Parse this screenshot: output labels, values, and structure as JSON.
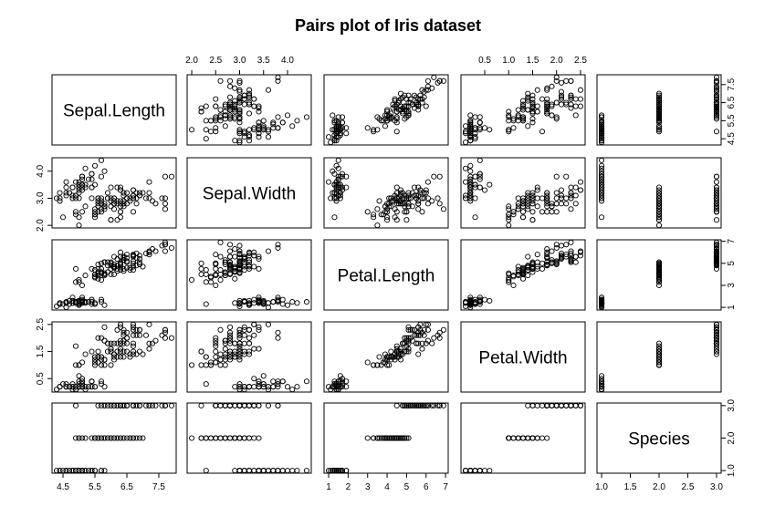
{
  "chart_data": {
    "type": "scatter",
    "title": "Pairs plot of Iris dataset",
    "variables": [
      "Sepal.Length",
      "Sepal.Width",
      "Petal.Length",
      "Petal.Width",
      "Species"
    ],
    "ranges": [
      [
        4.3,
        7.9
      ],
      [
        2.0,
        4.4
      ],
      [
        1.0,
        6.9
      ],
      [
        0.1,
        2.5
      ],
      [
        1,
        3
      ]
    ],
    "ticks": [
      [
        "4.5",
        "5.5",
        "6.5",
        "7.5"
      ],
      [
        "2.0",
        "2.5",
        "3.0",
        "3.5",
        "4.0"
      ],
      [
        "1",
        "2",
        "3",
        "4",
        "5",
        "6",
        "7"
      ],
      [
        "0.5",
        "1.0",
        "1.5",
        "2.0",
        "2.5"
      ],
      [
        "1.0",
        "1.5",
        "2.0",
        "2.5",
        "3.0"
      ]
    ],
    "axes": {
      "bottom": [
        {
          "col": 0,
          "labels": [
            "4.5",
            "5.5",
            "6.5",
            "7.5"
          ]
        },
        {
          "col": 2,
          "labels": [
            "1",
            "2",
            "3",
            "4",
            "5",
            "6",
            "7"
          ]
        },
        {
          "col": 4,
          "labels": [
            "1.0",
            "1.5",
            "2.0",
            "2.5",
            "3.0"
          ]
        }
      ],
      "top": [
        {
          "col": 1,
          "labels": [
            "2.0",
            "2.5",
            "3.0",
            "3.5",
            "4.0"
          ]
        },
        {
          "col": 3,
          "labels": [
            "0.5",
            "1.0",
            "1.5",
            "2.0",
            "2.5"
          ]
        }
      ],
      "left": [
        {
          "row": 1,
          "labels": [
            "2.0",
            "3.0",
            "4.0"
          ]
        },
        {
          "row": 3,
          "labels": [
            "0.5",
            "1.5",
            "2.5"
          ]
        }
      ],
      "right": [
        {
          "row": 0,
          "labels": [
            "4.5",
            "5.5",
            "6.5",
            "7.5"
          ]
        },
        {
          "row": 2,
          "labels": [
            "1",
            "3",
            "5",
            "7"
          ]
        },
        {
          "row": 4,
          "labels": [
            "1.0",
            "2.0",
            "3.0"
          ]
        }
      ]
    },
    "grid": false,
    "species_codes": [
      1,
      2,
      3
    ],
    "observations": [
      [
        5.1,
        3.5,
        1.4,
        0.2,
        1
      ],
      [
        4.9,
        3.0,
        1.4,
        0.2,
        1
      ],
      [
        4.7,
        3.2,
        1.3,
        0.2,
        1
      ],
      [
        4.6,
        3.1,
        1.5,
        0.2,
        1
      ],
      [
        5.0,
        3.6,
        1.4,
        0.2,
        1
      ],
      [
        5.4,
        3.9,
        1.7,
        0.4,
        1
      ],
      [
        4.6,
        3.4,
        1.4,
        0.3,
        1
      ],
      [
        5.0,
        3.4,
        1.5,
        0.2,
        1
      ],
      [
        4.4,
        2.9,
        1.4,
        0.2,
        1
      ],
      [
        4.9,
        3.1,
        1.5,
        0.1,
        1
      ],
      [
        5.4,
        3.7,
        1.5,
        0.2,
        1
      ],
      [
        4.8,
        3.4,
        1.6,
        0.2,
        1
      ],
      [
        4.8,
        3.0,
        1.4,
        0.1,
        1
      ],
      [
        4.3,
        3.0,
        1.1,
        0.1,
        1
      ],
      [
        5.8,
        4.0,
        1.2,
        0.2,
        1
      ],
      [
        5.7,
        4.4,
        1.5,
        0.4,
        1
      ],
      [
        5.4,
        3.9,
        1.3,
        0.4,
        1
      ],
      [
        5.1,
        3.5,
        1.4,
        0.3,
        1
      ],
      [
        5.7,
        3.8,
        1.7,
        0.3,
        1
      ],
      [
        5.1,
        3.8,
        1.5,
        0.3,
        1
      ],
      [
        5.4,
        3.4,
        1.7,
        0.2,
        1
      ],
      [
        5.1,
        3.7,
        1.5,
        0.4,
        1
      ],
      [
        4.6,
        3.6,
        1.0,
        0.2,
        1
      ],
      [
        5.1,
        3.3,
        1.7,
        0.5,
        1
      ],
      [
        4.8,
        3.4,
        1.9,
        0.2,
        1
      ],
      [
        5.0,
        3.0,
        1.6,
        0.2,
        1
      ],
      [
        5.0,
        3.4,
        1.6,
        0.4,
        1
      ],
      [
        5.2,
        3.5,
        1.5,
        0.2,
        1
      ],
      [
        5.2,
        3.4,
        1.4,
        0.2,
        1
      ],
      [
        4.7,
        3.2,
        1.6,
        0.2,
        1
      ],
      [
        4.8,
        3.1,
        1.6,
        0.2,
        1
      ],
      [
        5.4,
        3.4,
        1.5,
        0.4,
        1
      ],
      [
        5.2,
        4.1,
        1.5,
        0.1,
        1
      ],
      [
        5.5,
        4.2,
        1.4,
        0.2,
        1
      ],
      [
        4.9,
        3.1,
        1.5,
        0.2,
        1
      ],
      [
        5.0,
        3.2,
        1.2,
        0.2,
        1
      ],
      [
        5.5,
        3.5,
        1.3,
        0.2,
        1
      ],
      [
        4.9,
        3.6,
        1.4,
        0.1,
        1
      ],
      [
        4.4,
        3.0,
        1.3,
        0.2,
        1
      ],
      [
        5.1,
        3.4,
        1.5,
        0.2,
        1
      ],
      [
        5.0,
        3.5,
        1.3,
        0.3,
        1
      ],
      [
        4.5,
        2.3,
        1.3,
        0.3,
        1
      ],
      [
        4.4,
        3.2,
        1.3,
        0.2,
        1
      ],
      [
        5.0,
        3.5,
        1.6,
        0.6,
        1
      ],
      [
        5.1,
        3.8,
        1.9,
        0.4,
        1
      ],
      [
        4.8,
        3.0,
        1.4,
        0.3,
        1
      ],
      [
        5.1,
        3.8,
        1.6,
        0.2,
        1
      ],
      [
        4.6,
        3.2,
        1.4,
        0.2,
        1
      ],
      [
        5.3,
        3.7,
        1.5,
        0.2,
        1
      ],
      [
        5.0,
        3.3,
        1.4,
        0.2,
        1
      ],
      [
        7.0,
        3.2,
        4.7,
        1.4,
        2
      ],
      [
        6.4,
        3.2,
        4.5,
        1.5,
        2
      ],
      [
        6.9,
        3.1,
        4.9,
        1.5,
        2
      ],
      [
        5.5,
        2.3,
        4.0,
        1.3,
        2
      ],
      [
        6.5,
        2.8,
        4.6,
        1.5,
        2
      ],
      [
        5.7,
        2.8,
        4.5,
        1.3,
        2
      ],
      [
        6.3,
        3.3,
        4.7,
        1.6,
        2
      ],
      [
        4.9,
        2.4,
        3.3,
        1.0,
        2
      ],
      [
        6.6,
        2.9,
        4.6,
        1.3,
        2
      ],
      [
        5.2,
        2.7,
        3.9,
        1.4,
        2
      ],
      [
        5.0,
        2.0,
        3.5,
        1.0,
        2
      ],
      [
        5.9,
        3.0,
        4.2,
        1.5,
        2
      ],
      [
        6.0,
        2.2,
        4.0,
        1.0,
        2
      ],
      [
        6.1,
        2.9,
        4.7,
        1.4,
        2
      ],
      [
        5.6,
        2.9,
        3.6,
        1.3,
        2
      ],
      [
        6.7,
        3.1,
        4.4,
        1.4,
        2
      ],
      [
        5.6,
        3.0,
        4.5,
        1.5,
        2
      ],
      [
        5.8,
        2.7,
        4.1,
        1.0,
        2
      ],
      [
        6.2,
        2.2,
        4.5,
        1.5,
        2
      ],
      [
        5.6,
        2.5,
        3.9,
        1.1,
        2
      ],
      [
        5.9,
        3.2,
        4.8,
        1.8,
        2
      ],
      [
        6.1,
        2.8,
        4.0,
        1.3,
        2
      ],
      [
        6.3,
        2.5,
        4.9,
        1.5,
        2
      ],
      [
        6.1,
        2.8,
        4.7,
        1.2,
        2
      ],
      [
        6.4,
        2.9,
        4.3,
        1.3,
        2
      ],
      [
        6.6,
        3.0,
        4.4,
        1.4,
        2
      ],
      [
        6.8,
        2.8,
        4.8,
        1.4,
        2
      ],
      [
        6.7,
        3.0,
        5.0,
        1.7,
        2
      ],
      [
        6.0,
        2.9,
        4.5,
        1.5,
        2
      ],
      [
        5.7,
        2.6,
        3.5,
        1.0,
        2
      ],
      [
        5.5,
        2.4,
        3.8,
        1.1,
        2
      ],
      [
        5.5,
        2.4,
        3.7,
        1.0,
        2
      ],
      [
        5.8,
        2.7,
        3.9,
        1.2,
        2
      ],
      [
        6.0,
        2.7,
        5.1,
        1.6,
        2
      ],
      [
        5.4,
        3.0,
        4.5,
        1.5,
        2
      ],
      [
        6.0,
        3.4,
        4.5,
        1.6,
        2
      ],
      [
        6.7,
        3.1,
        4.7,
        1.5,
        2
      ],
      [
        6.3,
        2.3,
        4.4,
        1.3,
        2
      ],
      [
        5.6,
        3.0,
        4.1,
        1.3,
        2
      ],
      [
        5.5,
        2.5,
        4.0,
        1.3,
        2
      ],
      [
        5.5,
        2.6,
        4.4,
        1.2,
        2
      ],
      [
        6.1,
        3.0,
        4.6,
        1.4,
        2
      ],
      [
        5.8,
        2.6,
        4.0,
        1.2,
        2
      ],
      [
        5.0,
        2.3,
        3.3,
        1.0,
        2
      ],
      [
        5.6,
        2.7,
        4.2,
        1.3,
        2
      ],
      [
        5.7,
        3.0,
        4.2,
        1.2,
        2
      ],
      [
        5.7,
        2.9,
        4.2,
        1.3,
        2
      ],
      [
        6.2,
        2.9,
        4.3,
        1.3,
        2
      ],
      [
        5.1,
        2.5,
        3.0,
        1.1,
        2
      ],
      [
        5.7,
        2.8,
        4.1,
        1.3,
        2
      ],
      [
        6.3,
        3.3,
        6.0,
        2.5,
        3
      ],
      [
        5.8,
        2.7,
        5.1,
        1.9,
        3
      ],
      [
        7.1,
        3.0,
        5.9,
        2.1,
        3
      ],
      [
        6.3,
        2.9,
        5.6,
        1.8,
        3
      ],
      [
        6.5,
        3.0,
        5.8,
        2.2,
        3
      ],
      [
        7.6,
        3.0,
        6.6,
        2.1,
        3
      ],
      [
        4.9,
        2.5,
        4.5,
        1.7,
        3
      ],
      [
        7.3,
        2.9,
        6.3,
        1.8,
        3
      ],
      [
        6.7,
        2.5,
        5.8,
        1.8,
        3
      ],
      [
        7.2,
        3.6,
        6.1,
        2.5,
        3
      ],
      [
        6.5,
        3.2,
        5.1,
        2.0,
        3
      ],
      [
        6.4,
        2.7,
        5.3,
        1.9,
        3
      ],
      [
        6.8,
        3.0,
        5.5,
        2.1,
        3
      ],
      [
        5.7,
        2.5,
        5.0,
        2.0,
        3
      ],
      [
        5.8,
        2.8,
        5.1,
        2.4,
        3
      ],
      [
        6.4,
        3.2,
        5.3,
        2.3,
        3
      ],
      [
        6.5,
        3.0,
        5.5,
        1.8,
        3
      ],
      [
        7.7,
        3.8,
        6.7,
        2.2,
        3
      ],
      [
        7.7,
        2.6,
        6.9,
        2.3,
        3
      ],
      [
        6.0,
        2.2,
        5.0,
        1.5,
        3
      ],
      [
        6.9,
        3.2,
        5.7,
        2.3,
        3
      ],
      [
        5.6,
        2.8,
        4.9,
        2.0,
        3
      ],
      [
        7.7,
        2.8,
        6.7,
        2.0,
        3
      ],
      [
        6.3,
        2.7,
        4.9,
        1.8,
        3
      ],
      [
        6.7,
        3.3,
        5.7,
        2.1,
        3
      ],
      [
        7.2,
        3.2,
        6.0,
        1.8,
        3
      ],
      [
        6.2,
        2.8,
        4.8,
        1.8,
        3
      ],
      [
        6.1,
        3.0,
        4.9,
        1.8,
        3
      ],
      [
        6.4,
        2.8,
        5.6,
        2.1,
        3
      ],
      [
        7.2,
        3.0,
        5.8,
        1.6,
        3
      ],
      [
        7.4,
        2.8,
        6.1,
        1.9,
        3
      ],
      [
        7.9,
        3.8,
        6.4,
        2.0,
        3
      ],
      [
        6.4,
        2.8,
        5.6,
        2.2,
        3
      ],
      [
        6.3,
        2.8,
        5.1,
        1.5,
        3
      ],
      [
        6.1,
        2.6,
        5.6,
        1.4,
        3
      ],
      [
        7.7,
        3.0,
        6.1,
        2.3,
        3
      ],
      [
        6.3,
        3.4,
        5.6,
        2.4,
        3
      ],
      [
        6.4,
        3.1,
        5.5,
        1.8,
        3
      ],
      [
        6.0,
        3.0,
        4.8,
        1.8,
        3
      ],
      [
        6.9,
        3.1,
        5.4,
        2.1,
        3
      ],
      [
        6.7,
        3.1,
        5.6,
        2.4,
        3
      ],
      [
        6.9,
        3.1,
        5.1,
        2.3,
        3
      ],
      [
        5.8,
        2.7,
        5.1,
        1.9,
        3
      ],
      [
        6.8,
        3.2,
        5.9,
        2.3,
        3
      ],
      [
        6.7,
        3.3,
        5.7,
        2.5,
        3
      ],
      [
        6.7,
        3.0,
        5.2,
        2.3,
        3
      ],
      [
        6.3,
        2.5,
        5.0,
        1.9,
        3
      ],
      [
        6.5,
        3.0,
        5.2,
        2.0,
        3
      ],
      [
        6.2,
        3.4,
        5.4,
        2.3,
        3
      ],
      [
        5.9,
        3.0,
        5.1,
        1.8,
        3
      ]
    ]
  }
}
